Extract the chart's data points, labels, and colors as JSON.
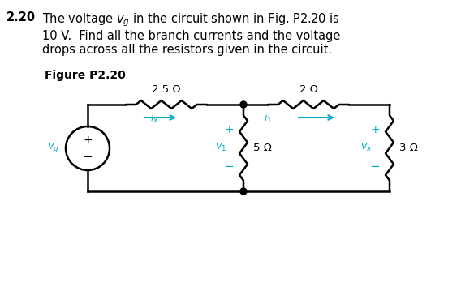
{
  "title_num": "2.20",
  "title_text": "The voltage $v_g$ in the circuit shown in Fig. P2.20 is\n10 V.  Find all the branch currents and the voltage\ndrops across all the resistors given in the circuit.",
  "fig_label": "Figure P2.20",
  "resistor_25": "2.5 Ω",
  "resistor_2": "2 Ω",
  "resistor_5": "5 Ω",
  "resistor_3": "3 Ω",
  "current_x": "$i_x$",
  "current_1": "$i_1$",
  "voltage_1": "$v_1$",
  "voltage_x": "$v_x$",
  "voltage_g": "$v_g$",
  "bg_color": "#ffffff",
  "line_color": "#000000",
  "blue_color": "#00aacc",
  "text_color": "#000000"
}
